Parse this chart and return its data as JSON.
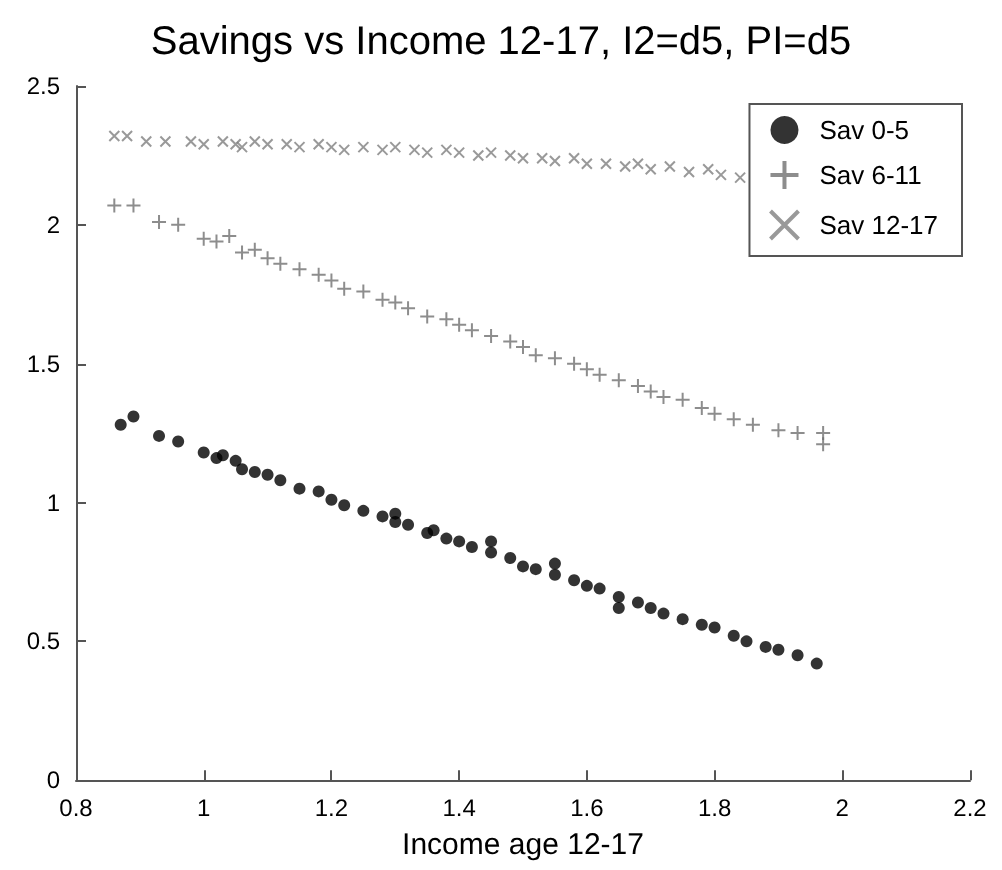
{
  "chart_data": {
    "type": "scatter",
    "title": "Savings vs Income 12-17, I2=d5, PI=d5",
    "xlabel": "Income age 12-17",
    "xlim": [
      0.8,
      2.2
    ],
    "xticks": [
      0.8,
      1,
      1.2,
      1.4,
      1.6,
      1.8,
      2,
      2.2
    ],
    "ylim": [
      0,
      2.5
    ],
    "yticks": [
      0,
      0.5,
      1,
      1.5,
      2,
      2.5
    ],
    "grid": false,
    "legend": "top right",
    "series": [
      {
        "name": "Sav 0-5",
        "color": "#000000",
        "marker": "circle",
        "x": [
          0.87,
          0.89,
          0.93,
          0.96,
          1.0,
          1.02,
          1.03,
          1.05,
          1.06,
          1.08,
          1.1,
          1.12,
          1.15,
          1.18,
          1.2,
          1.22,
          1.25,
          1.28,
          1.3,
          1.3,
          1.32,
          1.35,
          1.36,
          1.38,
          1.4,
          1.42,
          1.45,
          1.45,
          1.48,
          1.5,
          1.52,
          1.55,
          1.55,
          1.58,
          1.6,
          1.62,
          1.65,
          1.65,
          1.68,
          1.7,
          1.72,
          1.75,
          1.78,
          1.8,
          1.83,
          1.85,
          1.88,
          1.9,
          1.93,
          1.96
        ],
        "values": [
          1.28,
          1.31,
          1.24,
          1.22,
          1.18,
          1.16,
          1.17,
          1.15,
          1.12,
          1.11,
          1.1,
          1.08,
          1.05,
          1.04,
          1.01,
          0.99,
          0.97,
          0.95,
          0.93,
          0.96,
          0.92,
          0.89,
          0.9,
          0.87,
          0.86,
          0.84,
          0.82,
          0.86,
          0.8,
          0.77,
          0.76,
          0.74,
          0.78,
          0.72,
          0.7,
          0.69,
          0.66,
          0.62,
          0.64,
          0.62,
          0.6,
          0.58,
          0.56,
          0.55,
          0.52,
          0.5,
          0.48,
          0.47,
          0.45,
          0.42
        ]
      },
      {
        "name": "Sav 6-11",
        "color": "#707070",
        "marker": "plus",
        "x": [
          0.86,
          0.89,
          0.93,
          0.96,
          1.0,
          1.02,
          1.04,
          1.06,
          1.08,
          1.1,
          1.12,
          1.15,
          1.18,
          1.2,
          1.22,
          1.25,
          1.28,
          1.3,
          1.32,
          1.35,
          1.38,
          1.4,
          1.42,
          1.45,
          1.48,
          1.5,
          1.52,
          1.55,
          1.58,
          1.6,
          1.62,
          1.65,
          1.68,
          1.7,
          1.72,
          1.75,
          1.78,
          1.8,
          1.83,
          1.86,
          1.9,
          1.93,
          1.97,
          1.97
        ],
        "values": [
          2.07,
          2.07,
          2.01,
          2.0,
          1.95,
          1.94,
          1.96,
          1.9,
          1.91,
          1.88,
          1.86,
          1.84,
          1.82,
          1.8,
          1.77,
          1.76,
          1.73,
          1.72,
          1.7,
          1.67,
          1.66,
          1.64,
          1.62,
          1.6,
          1.58,
          1.56,
          1.53,
          1.52,
          1.5,
          1.48,
          1.46,
          1.44,
          1.42,
          1.4,
          1.38,
          1.37,
          1.34,
          1.32,
          1.3,
          1.28,
          1.26,
          1.25,
          1.25,
          1.21
        ]
      },
      {
        "name": "Sav 12-17",
        "color": "#808080",
        "marker": "cross",
        "x": [
          0.86,
          0.88,
          0.91,
          0.94,
          0.98,
          1.0,
          1.03,
          1.05,
          1.06,
          1.08,
          1.1,
          1.13,
          1.15,
          1.18,
          1.2,
          1.22,
          1.25,
          1.28,
          1.3,
          1.33,
          1.35,
          1.38,
          1.4,
          1.43,
          1.45,
          1.48,
          1.5,
          1.53,
          1.55,
          1.58,
          1.6,
          1.63,
          1.66,
          1.68,
          1.7,
          1.73,
          1.76,
          1.79,
          1.81,
          1.84
        ],
        "values": [
          2.32,
          2.32,
          2.3,
          2.3,
          2.3,
          2.29,
          2.3,
          2.29,
          2.28,
          2.3,
          2.29,
          2.29,
          2.28,
          2.29,
          2.28,
          2.27,
          2.28,
          2.27,
          2.28,
          2.27,
          2.26,
          2.27,
          2.26,
          2.25,
          2.26,
          2.25,
          2.24,
          2.24,
          2.23,
          2.24,
          2.22,
          2.22,
          2.21,
          2.22,
          2.2,
          2.21,
          2.19,
          2.2,
          2.18,
          2.17
        ]
      }
    ]
  }
}
